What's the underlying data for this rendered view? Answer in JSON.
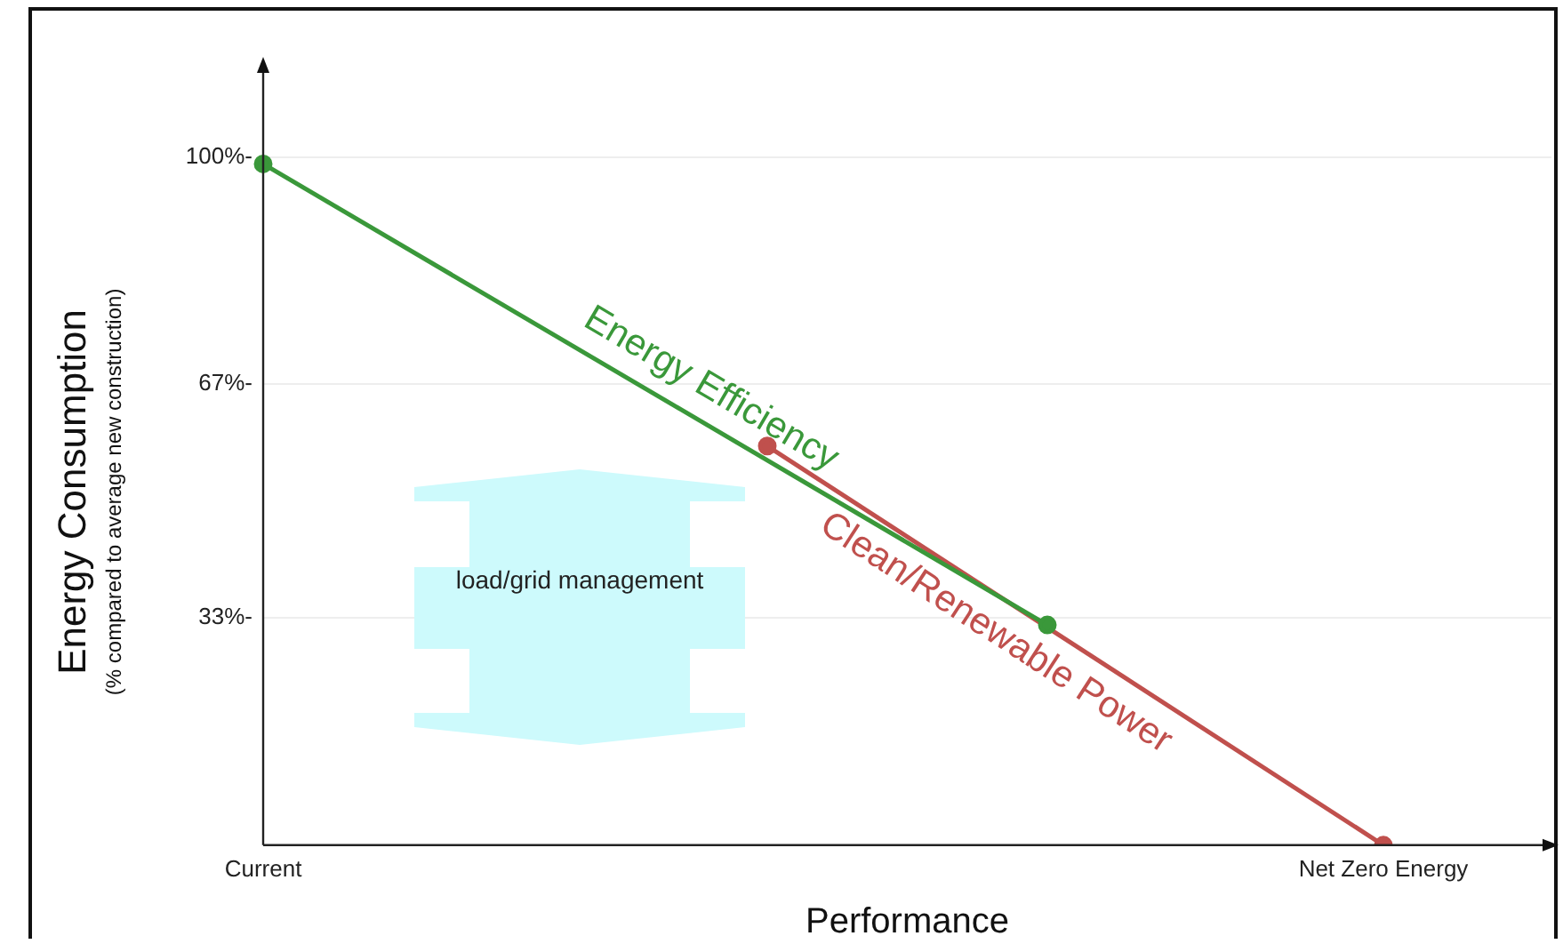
{
  "chart_data": {
    "type": "line",
    "xlabel": "Performance",
    "ylabel": "Energy Consumption\n(% compared to average new construction)",
    "categories": [
      "Current",
      null,
      null,
      null,
      null,
      null,
      null,
      null,
      null,
      null,
      null,
      null,
      null,
      null,
      null,
      null,
      null,
      null,
      null,
      null,
      "Net Zero Energy",
      null,
      null,
      null
    ],
    "ylim": [
      0,
      113
    ],
    "yticks": [
      {
        "value": 33,
        "label": "33%-"
      },
      {
        "value": 67,
        "label": "67%-"
      },
      {
        "value": 100,
        "label": "100%-"
      }
    ],
    "grid": "y",
    "marker": "circle",
    "series": [
      {
        "name": "Energy Efficiency",
        "color": "#3a983a",
        "values": [
          99,
          null,
          null,
          null,
          null,
          null,
          null,
          null,
          null,
          null,
          null,
          null,
          null,
          null,
          32,
          null,
          null,
          null,
          null,
          null,
          null,
          null,
          null,
          null
        ]
      },
      {
        "name": "Clean/Renewable Power",
        "color": "#c0504d",
        "values": [
          null,
          null,
          null,
          null,
          null,
          null,
          null,
          null,
          null,
          58,
          null,
          null,
          null,
          null,
          null,
          null,
          null,
          null,
          null,
          null,
          0,
          null,
          null,
          null
        ]
      }
    ],
    "annotations": [
      "load/grid management"
    ]
  }
}
